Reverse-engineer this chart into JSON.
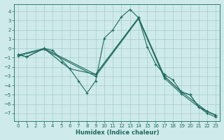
{
  "xlabel": "Humidex (Indice chaleur)",
  "background_color": "#ceeaea",
  "grid_color": "#a8cccc",
  "line_color": "#1e6b5e",
  "xlim": [
    -0.5,
    23.5
  ],
  "ylim": [
    -7.8,
    4.8
  ],
  "yticks": [
    -7,
    -6,
    -5,
    -4,
    -3,
    -2,
    -1,
    0,
    1,
    2,
    3,
    4
  ],
  "xticks": [
    0,
    1,
    2,
    3,
    4,
    5,
    6,
    7,
    8,
    9,
    10,
    11,
    12,
    13,
    14,
    15,
    16,
    17,
    18,
    19,
    20,
    21,
    22,
    23
  ],
  "lines": [
    {
      "x": [
        0,
        1,
        3,
        4,
        6,
        7,
        8,
        9,
        10,
        11,
        12,
        13,
        14,
        15,
        16,
        17,
        18,
        19,
        20,
        21,
        22,
        23
      ],
      "y": [
        -0.7,
        -0.9,
        0.0,
        -0.2,
        -2.2,
        -3.5,
        -4.8,
        -3.5,
        1.1,
        2.0,
        3.4,
        4.2,
        3.3,
        0.2,
        -1.7,
        -2.8,
        -3.4,
        -4.7,
        -5.0,
        -6.3,
        -6.8,
        -7.2
      ]
    },
    {
      "x": [
        0,
        1,
        3,
        5,
        6,
        9,
        14,
        17,
        19,
        20,
        21,
        22,
        23
      ],
      "y": [
        -0.7,
        -0.9,
        0.0,
        -1.5,
        -2.2,
        -2.8,
        3.3,
        -3.0,
        -4.7,
        -5.0,
        -6.3,
        -6.8,
        -7.2
      ]
    },
    {
      "x": [
        0,
        3,
        9,
        14,
        17,
        19,
        22,
        23
      ],
      "y": [
        -0.7,
        0.0,
        -2.8,
        3.3,
        -3.0,
        -4.7,
        -6.8,
        -7.2
      ]
    },
    {
      "x": [
        0,
        3,
        9,
        14,
        17,
        19,
        22,
        23
      ],
      "y": [
        -0.8,
        -0.1,
        -3.0,
        3.2,
        -3.2,
        -4.9,
        -7.0,
        -7.4
      ]
    }
  ]
}
